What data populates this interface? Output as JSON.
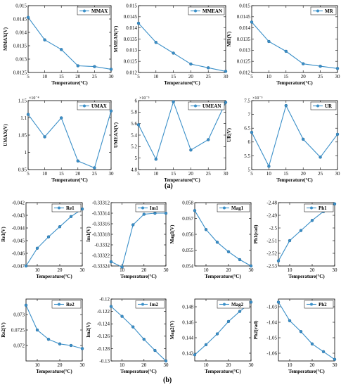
{
  "panel_labels": {
    "a": "(a)",
    "b": "(b)"
  },
  "series_color": "#3a8fc8",
  "chart_data": [
    {
      "type": "line",
      "legend": "MMAX",
      "xlabel": "Temperature(°C)",
      "ylabel": "MMAX(V)",
      "exponent": "",
      "xlim": [
        5,
        30
      ],
      "ylim": [
        0.0125,
        0.015
      ],
      "xticks": [
        5,
        10,
        15,
        20,
        25,
        30
      ],
      "xtick_labels": [
        "5",
        "10",
        "15",
        "20",
        "25",
        "30"
      ],
      "yticks": [
        0.0125,
        0.013,
        0.0135,
        0.014,
        0.0145,
        0.015
      ],
      "ytick_labels": [
        "0.0125",
        "0.013",
        "0.0135",
        "0.014",
        "0.0145",
        "0.015"
      ],
      "x": [
        5,
        10,
        15,
        20,
        25,
        30
      ],
      "y": [
        0.01456,
        0.01372,
        0.01336,
        0.01275,
        0.01272,
        0.01262
      ]
    },
    {
      "type": "line",
      "legend": "MMEAN",
      "xlabel": "Temperature(°C)",
      "ylabel": "MMEAN(V)",
      "exponent": "",
      "xlim": [
        5,
        30
      ],
      "ylim": [
        0.012,
        0.015
      ],
      "xticks": [
        5,
        10,
        15,
        20,
        25,
        30
      ],
      "xtick_labels": [
        "5",
        "10",
        "15",
        "20",
        "25",
        "30"
      ],
      "yticks": [
        0.012,
        0.0125,
        0.013,
        0.0135,
        0.014,
        0.0145,
        0.015
      ],
      "ytick_labels": [
        "0.012",
        "0.0125",
        "0.013",
        "0.0135",
        "0.014",
        "0.0145",
        "0.015"
      ],
      "x": [
        5,
        10,
        15,
        20,
        25,
        30
      ],
      "y": [
        0.01421,
        0.01335,
        0.01287,
        0.01238,
        0.01221,
        0.01205
      ]
    },
    {
      "type": "line",
      "legend": "MR",
      "xlabel": "Temperature(°C)",
      "ylabel": "MR(V)",
      "exponent": "",
      "xlim": [
        5,
        30
      ],
      "ylim": [
        0.012,
        0.015
      ],
      "xticks": [
        5,
        10,
        15,
        20,
        25,
        30
      ],
      "xtick_labels": [
        "5",
        "10",
        "15",
        "20",
        "25",
        "30"
      ],
      "yticks": [
        0.012,
        0.0125,
        0.013,
        0.0135,
        0.014,
        0.0145,
        0.015
      ],
      "ytick_labels": [
        "0.012",
        "0.0125",
        "0.013",
        "0.0135",
        "0.014",
        "0.0145",
        "0.015"
      ],
      "x": [
        5,
        10,
        15,
        20,
        25,
        30
      ],
      "y": [
        0.01426,
        0.01339,
        0.01295,
        0.01239,
        0.01228,
        0.01218
      ]
    },
    {
      "type": "line",
      "legend": "UMAX",
      "xlabel": "Temperature(°C)",
      "ylabel": "UMAX(V)",
      "exponent": "×10⁻⁴",
      "xlim": [
        5,
        30
      ],
      "ylim": [
        0.95,
        1.15
      ],
      "xticks": [
        5,
        10,
        15,
        20,
        25,
        30
      ],
      "xtick_labels": [
        "5",
        "10",
        "15",
        "20",
        "25",
        "30"
      ],
      "yticks": [
        0.95,
        1,
        1.05,
        1.1,
        1.15
      ],
      "ytick_labels": [
        "0.95",
        "1",
        "1.05",
        "1.1",
        "1.15"
      ],
      "x": [
        5,
        10,
        15,
        20,
        25,
        30
      ],
      "y": [
        1.11,
        1.045,
        1.1,
        0.975,
        0.955,
        1.12
      ]
    },
    {
      "type": "line",
      "legend": "UMEAN",
      "xlabel": "Temperature(°C)",
      "ylabel": "UMEAN(V)",
      "exponent": "×10⁻⁵",
      "xlim": [
        5,
        30
      ],
      "ylim": [
        4.8,
        6
      ],
      "xticks": [
        5,
        10,
        15,
        20,
        25,
        30
      ],
      "xtick_labels": [
        "5",
        "10",
        "15",
        "20",
        "25",
        "30"
      ],
      "yticks": [
        4.8,
        5,
        5.2,
        5.4,
        5.6,
        5.8,
        6
      ],
      "ytick_labels": [
        "4.8",
        "5",
        "5.2",
        "5.4",
        "5.6",
        "5.8",
        "6"
      ],
      "x": [
        5,
        10,
        15,
        20,
        25,
        30
      ],
      "y": [
        5.58,
        4.98,
        5.98,
        5.14,
        5.32,
        5.97
      ]
    },
    {
      "type": "line",
      "legend": "UR",
      "xlabel": "Temperature(°C)",
      "ylabel": "UR(V)",
      "exponent": "×10⁻⁵",
      "xlim": [
        5,
        30
      ],
      "ylim": [
        5,
        7.5
      ],
      "xticks": [
        5,
        10,
        15,
        20,
        25,
        30
      ],
      "xtick_labels": [
        "5",
        "10",
        "15",
        "20",
        "25",
        "30"
      ],
      "yticks": [
        5,
        5.5,
        6,
        6.5,
        7,
        7.5
      ],
      "ytick_labels": [
        "5",
        "5.5",
        "6",
        "6.5",
        "7",
        "7.5"
      ],
      "x": [
        5,
        10,
        15,
        20,
        25,
        30
      ],
      "y": [
        6.35,
        5.12,
        7.32,
        6.1,
        5.45,
        6.28
      ]
    },
    {
      "type": "line",
      "legend": "Re1",
      "xlabel": "Temperature(°C)",
      "ylabel": "Re1(V)",
      "exponent": "",
      "xlim": [
        5,
        30
      ],
      "ylim": [
        -0.047,
        -0.042
      ],
      "xticks": [
        10,
        20,
        30
      ],
      "xtick_labels": [
        "10",
        "20",
        "30"
      ],
      "yticks": [
        -0.047,
        -0.046,
        -0.045,
        -0.044,
        -0.043,
        -0.042
      ],
      "ytick_labels": [
        "-0.047",
        "-0.046",
        "-0.045",
        "-0.044",
        "-0.043",
        "-0.042"
      ],
      "x": [
        5,
        10,
        15,
        20,
        25,
        30
      ],
      "y": [
        -0.047,
        -0.0456,
        -0.0447,
        -0.0439,
        -0.0431,
        -0.0425
      ]
    },
    {
      "type": "line",
      "legend": "Im1",
      "xlabel": "Temperature(°C)",
      "ylabel": "Im1(V)",
      "exponent": "",
      "xlim": [
        5,
        30
      ],
      "ylim": [
        -0.33324,
        -0.33312
      ],
      "xticks": [
        10,
        20,
        30
      ],
      "xtick_labels": [
        "10",
        "20",
        "30"
      ],
      "yticks": [
        -0.33324,
        -0.33322,
        -0.3332,
        -0.33318,
        -0.33316,
        -0.33314,
        -0.33312
      ],
      "ytick_labels": [
        "-0.33324",
        "-0.33322",
        "-0.3332",
        "-0.33318",
        "-0.33316",
        "-0.33314",
        "-0.33312"
      ],
      "x": [
        5,
        10,
        15,
        20,
        25,
        30
      ],
      "y": [
        -0.333232,
        -0.333242,
        -0.333162,
        -0.333142,
        -0.33314,
        -0.33314
      ]
    },
    {
      "type": "line",
      "legend": "Mag1",
      "xlabel": "Temperature(°C)",
      "ylabel": "Mag1(V)",
      "exponent": "",
      "xlim": [
        5,
        30
      ],
      "ylim": [
        0.054,
        0.058
      ],
      "xticks": [
        10,
        20,
        30
      ],
      "xtick_labels": [
        "10",
        "20",
        "30"
      ],
      "yticks": [
        0.054,
        0.055,
        0.056,
        0.057,
        0.058
      ],
      "ytick_labels": [
        "0.054",
        "0.055",
        "0.056",
        "0.057",
        "0.058"
      ],
      "x": [
        5,
        10,
        15,
        20,
        25,
        30
      ],
      "y": [
        0.0575,
        0.0563,
        0.0555,
        0.0549,
        0.0544,
        0.054
      ]
    },
    {
      "type": "line",
      "legend": "Ph1",
      "xlabel": "Temperature(°C)",
      "ylabel": "Ph1(rad)",
      "exponent": "",
      "xlim": [
        5,
        30
      ],
      "ylim": [
        -2.53,
        -2.48
      ],
      "xticks": [
        10,
        20,
        30
      ],
      "xtick_labels": [
        "10",
        "20",
        "30"
      ],
      "yticks": [
        -2.53,
        -2.52,
        -2.51,
        -2.5,
        -2.49,
        -2.48
      ],
      "ytick_labels": [
        "-2.53",
        "-2.52",
        "-2.51",
        "-2.5",
        "-2.49",
        "-2.48"
      ],
      "x": [
        5,
        10,
        15,
        20,
        25,
        30
      ],
      "y": [
        -2.526,
        -2.51,
        -2.502,
        -2.494,
        -2.487,
        -2.481
      ]
    },
    {
      "type": "line",
      "legend": "Re2",
      "xlabel": "Temperature(°C)",
      "ylabel": "Re2(V)",
      "exponent": "",
      "xlim": [
        5,
        30
      ],
      "ylim": [
        0.0715,
        0.0735
      ],
      "xticks": [
        10,
        20,
        30
      ],
      "xtick_labels": [
        "10",
        "20",
        "30"
      ],
      "yticks": [
        0.072,
        0.0725,
        0.073
      ],
      "ytick_labels": [
        "0.072",
        "0.0725",
        "0.073"
      ],
      "x": [
        5,
        10,
        15,
        20,
        25,
        30
      ],
      "y": [
        0.0733,
        0.0725,
        0.0722,
        0.07205,
        0.072,
        0.0719
      ]
    },
    {
      "type": "line",
      "legend": "Im2",
      "xlabel": "Temperature(°C)",
      "ylabel": "Im2(V)",
      "exponent": "",
      "xlim": [
        5,
        30
      ],
      "ylim": [
        -0.13,
        -0.12
      ],
      "xticks": [
        10,
        20,
        30
      ],
      "xtick_labels": [
        "10",
        "20",
        "30"
      ],
      "yticks": [
        -0.13,
        -0.128,
        -0.126,
        -0.124,
        -0.122,
        -0.12
      ],
      "ytick_labels": [
        "-0.13",
        "-0.128",
        "-0.126",
        "-0.124",
        "-0.122",
        "-0.12"
      ],
      "x": [
        5,
        10,
        15,
        20,
        25,
        30
      ],
      "y": [
        -0.1212,
        -0.1228,
        -0.1245,
        -0.1265,
        -0.1283,
        -0.13
      ]
    },
    {
      "type": "line",
      "legend": "Mag2",
      "xlabel": "Temperature(°C)",
      "ylabel": "Mag2(V)",
      "exponent": "",
      "xlim": [
        5,
        30
      ],
      "ylim": [
        0.141,
        0.149
      ],
      "xticks": [
        10,
        20,
        30
      ],
      "xtick_labels": [
        "10",
        "20",
        "30"
      ],
      "yticks": [
        0.142,
        0.144,
        0.146,
        0.148
      ],
      "ytick_labels": [
        "0.142",
        "0.144",
        "0.146",
        "0.148"
      ],
      "x": [
        5,
        10,
        15,
        20,
        25,
        30
      ],
      "y": [
        0.1418,
        0.1431,
        0.1445,
        0.1461,
        0.1474,
        0.1486
      ]
    },
    {
      "type": "line",
      "legend": "Ph2",
      "xlabel": "Temperature(°C)",
      "ylabel": "Ph2(rad)",
      "exponent": "",
      "xlim": [
        5,
        30
      ],
      "ylim": [
        -1.065,
        -1.025
      ],
      "xticks": [
        10,
        20,
        30
      ],
      "xtick_labels": [
        "10",
        "20",
        "30"
      ],
      "yticks": [
        -1.06,
        -1.05,
        -1.04,
        -1.03
      ],
      "ytick_labels": [
        "-1.06",
        "-1.05",
        "-1.04",
        "-1.03"
      ],
      "x": [
        5,
        10,
        15,
        20,
        25,
        30
      ],
      "y": [
        -1.027,
        -1.039,
        -1.046,
        -1.054,
        -1.059,
        -1.064
      ]
    }
  ]
}
